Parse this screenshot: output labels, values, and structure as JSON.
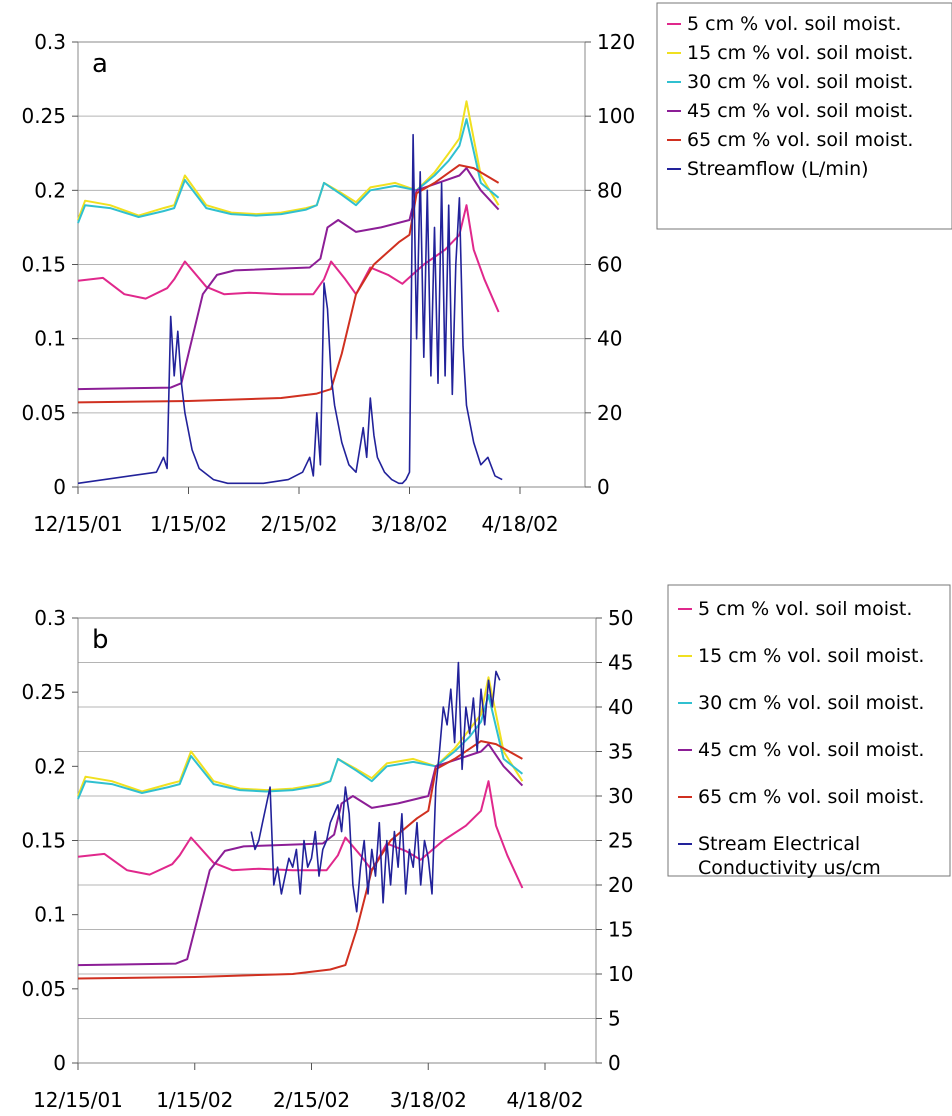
{
  "chart_data": [
    {
      "type": "line",
      "panel_label": "a",
      "x_tick_labels": [
        "12/15/01",
        "1/15/02",
        "2/15/02",
        "3/18/02",
        "4/18/02"
      ],
      "x_ticks": [
        "2001-12-15",
        "2002-01-15",
        "2002-02-15",
        "2002-03-18",
        "2002-04-18"
      ],
      "y_left": {
        "ticks": [
          "0",
          "0.05",
          "0.1",
          "0.15",
          "0.2",
          "0.25",
          "0.3"
        ],
        "lim": [
          0,
          0.3
        ]
      },
      "y_right": {
        "ticks": [
          "0",
          "20",
          "40",
          "60",
          "80",
          "100",
          "120"
        ],
        "lim": [
          0,
          120
        ]
      },
      "grid": "horizontal",
      "legend_position": "right",
      "legend": [
        "5 cm  % vol. soil moist.",
        "15 cm % vol. soil moist.",
        "30 cm % vol. soil moist.",
        "45 cm % vol. soil moist.",
        "65 cm % vol. soil moist.",
        "Streamflow (L/min)"
      ],
      "series": [
        {
          "name": "5 cm  % vol. soil moist.",
          "color": "#e0288c",
          "axis": "left",
          "x": [
            "2001-12-15",
            "2001-12-22",
            "2001-12-28",
            "2002-01-03",
            "2002-01-09",
            "2002-01-11",
            "2002-01-14",
            "2002-01-20",
            "2002-01-25",
            "2002-02-01",
            "2002-02-10",
            "2002-02-19",
            "2002-02-22",
            "2002-02-24",
            "2002-02-28",
            "2002-03-03",
            "2002-03-07",
            "2002-03-12",
            "2002-03-16",
            "2002-03-22",
            "2002-03-28",
            "2002-04-01",
            "2002-04-03",
            "2002-04-05",
            "2002-04-08",
            "2002-04-12"
          ],
          "y": [
            0.139,
            0.141,
            0.13,
            0.127,
            0.134,
            0.14,
            0.152,
            0.135,
            0.13,
            0.131,
            0.13,
            0.13,
            0.14,
            0.152,
            0.14,
            0.13,
            0.148,
            0.143,
            0.137,
            0.15,
            0.16,
            0.17,
            0.19,
            0.16,
            0.14,
            0.118
          ]
        },
        {
          "name": "15 cm % vol. soil moist.",
          "color": "#f0e020",
          "axis": "left",
          "x": [
            "2001-12-15",
            "2001-12-17",
            "2001-12-24",
            "2002-01-01",
            "2002-01-08",
            "2002-01-11",
            "2002-01-14",
            "2002-01-20",
            "2002-01-27",
            "2002-02-03",
            "2002-02-10",
            "2002-02-17",
            "2002-02-20",
            "2002-02-22",
            "2002-02-27",
            "2002-03-03",
            "2002-03-07",
            "2002-03-14",
            "2002-03-20",
            "2002-03-25",
            "2002-03-29",
            "2002-04-01",
            "2002-04-03",
            "2002-04-07",
            "2002-04-12"
          ],
          "y": [
            0.18,
            0.193,
            0.19,
            0.183,
            0.188,
            0.19,
            0.21,
            0.19,
            0.185,
            0.184,
            0.185,
            0.188,
            0.19,
            0.205,
            0.198,
            0.192,
            0.202,
            0.205,
            0.2,
            0.212,
            0.225,
            0.235,
            0.26,
            0.21,
            0.19
          ]
        },
        {
          "name": "30 cm % vol. soil moist.",
          "color": "#30c0d0",
          "axis": "left",
          "x": [
            "2001-12-15",
            "2001-12-17",
            "2001-12-24",
            "2002-01-01",
            "2002-01-08",
            "2002-01-11",
            "2002-01-14",
            "2002-01-20",
            "2002-01-27",
            "2002-02-03",
            "2002-02-10",
            "2002-02-17",
            "2002-02-20",
            "2002-02-22",
            "2002-02-27",
            "2002-03-03",
            "2002-03-07",
            "2002-03-14",
            "2002-03-20",
            "2002-03-25",
            "2002-03-29",
            "2002-04-01",
            "2002-04-03",
            "2002-04-07",
            "2002-04-12"
          ],
          "y": [
            0.178,
            0.19,
            0.188,
            0.182,
            0.186,
            0.188,
            0.207,
            0.188,
            0.184,
            0.183,
            0.184,
            0.187,
            0.19,
            0.205,
            0.197,
            0.19,
            0.2,
            0.203,
            0.2,
            0.21,
            0.22,
            0.23,
            0.248,
            0.205,
            0.195
          ]
        },
        {
          "name": "45 cm % vol. soil moist.",
          "color": "#8c1e96",
          "axis": "left",
          "x": [
            "2001-12-15",
            "2002-01-10",
            "2002-01-13",
            "2002-01-16",
            "2002-01-19",
            "2002-01-23",
            "2002-01-28",
            "2002-02-18",
            "2002-02-21",
            "2002-02-23",
            "2002-02-26",
            "2002-03-03",
            "2002-03-10",
            "2002-03-18",
            "2002-03-20",
            "2002-03-26",
            "2002-04-01",
            "2002-04-03",
            "2002-04-07",
            "2002-04-12"
          ],
          "y": [
            0.066,
            0.067,
            0.07,
            0.1,
            0.13,
            0.143,
            0.146,
            0.148,
            0.154,
            0.175,
            0.18,
            0.172,
            0.175,
            0.18,
            0.2,
            0.205,
            0.21,
            0.215,
            0.2,
            0.187
          ]
        },
        {
          "name": "65 cm % vol. soil moist.",
          "color": "#d03020",
          "axis": "left",
          "x": [
            "2001-12-15",
            "2002-01-15",
            "2002-02-10",
            "2002-02-20",
            "2002-02-24",
            "2002-02-27",
            "2002-03-03",
            "2002-03-08",
            "2002-03-15",
            "2002-03-18",
            "2002-03-20",
            "2002-03-25",
            "2002-04-01",
            "2002-04-05",
            "2002-04-12"
          ],
          "y": [
            0.057,
            0.058,
            0.06,
            0.063,
            0.066,
            0.09,
            0.13,
            0.15,
            0.165,
            0.17,
            0.198,
            0.205,
            0.217,
            0.215,
            0.205
          ]
        },
        {
          "name": "Streamflow (L/min)",
          "color": "#22229a",
          "axis": "right",
          "x": [
            "2001-12-15",
            "2002-01-06",
            "2002-01-07",
            "2002-01-08",
            "2002-01-09",
            "2002-01-10",
            "2002-01-11",
            "2002-01-12",
            "2002-01-13",
            "2002-01-14",
            "2002-01-16",
            "2002-01-18",
            "2002-01-22",
            "2002-01-26",
            "2002-02-05",
            "2002-02-12",
            "2002-02-16",
            "2002-02-18",
            "2002-02-19",
            "2002-02-20",
            "2002-02-21",
            "2002-02-22",
            "2002-02-23",
            "2002-02-24",
            "2002-02-25",
            "2002-02-27",
            "2002-03-01",
            "2002-03-03",
            "2002-03-05",
            "2002-03-06",
            "2002-03-07",
            "2002-03-08",
            "2002-03-09",
            "2002-03-11",
            "2002-03-13",
            "2002-03-15",
            "2002-03-16",
            "2002-03-17",
            "2002-03-18",
            "2002-03-19",
            "2002-03-20",
            "2002-03-21",
            "2002-03-22",
            "2002-03-23",
            "2002-03-24",
            "2002-03-25",
            "2002-03-26",
            "2002-03-27",
            "2002-03-28",
            "2002-03-29",
            "2002-03-30",
            "2002-03-31",
            "2002-04-01",
            "2002-04-02",
            "2002-04-03",
            "2002-04-05",
            "2002-04-07",
            "2002-04-09",
            "2002-04-11",
            "2002-04-13"
          ],
          "y": [
            1,
            4,
            6,
            8,
            5,
            46,
            30,
            42,
            28,
            20,
            10,
            5,
            2,
            1,
            1,
            2,
            4,
            8,
            3,
            20,
            6,
            55,
            48,
            30,
            22,
            12,
            6,
            4,
            16,
            8,
            24,
            14,
            8,
            4,
            2,
            1,
            1,
            2,
            4,
            95,
            40,
            85,
            35,
            80,
            30,
            70,
            28,
            82,
            30,
            76,
            25,
            60,
            78,
            38,
            22,
            12,
            6,
            8,
            3,
            2
          ]
        }
      ]
    },
    {
      "type": "line",
      "panel_label": "b",
      "x_tick_labels": [
        "12/15/01",
        "1/15/02",
        "2/15/02",
        "3/18/02",
        "4/18/02"
      ],
      "x_ticks": [
        "2001-12-15",
        "2002-01-15",
        "2002-02-15",
        "2002-03-18",
        "2002-04-18"
      ],
      "y_left": {
        "ticks": [
          "0",
          "0.05",
          "0.1",
          "0.15",
          "0.2",
          "0.25",
          "0.3"
        ],
        "lim": [
          0,
          0.3
        ]
      },
      "y_right": {
        "ticks": [
          "0",
          "5",
          "10",
          "15",
          "20",
          "25",
          "30",
          "35",
          "40",
          "45",
          "50"
        ],
        "lim": [
          0,
          50
        ]
      },
      "grid": "horizontal",
      "legend_position": "right",
      "legend": [
        "5 cm  % vol. soil moist.",
        "15 cm % vol. soil moist.",
        "30 cm % vol. soil moist.",
        "45 cm % vol. soil moist.",
        "65 cm % vol. soil moist.",
        "Stream Electrical Conductivity us/cm"
      ],
      "series": [
        {
          "name": "5 cm  % vol. soil moist.",
          "color": "#e0288c",
          "axis": "left",
          "x": [
            "2001-12-15",
            "2001-12-22",
            "2001-12-28",
            "2002-01-03",
            "2002-01-09",
            "2002-01-11",
            "2002-01-14",
            "2002-01-20",
            "2002-01-25",
            "2002-02-01",
            "2002-02-10",
            "2002-02-19",
            "2002-02-22",
            "2002-02-24",
            "2002-02-28",
            "2002-03-03",
            "2002-03-07",
            "2002-03-12",
            "2002-03-16",
            "2002-03-22",
            "2002-03-28",
            "2002-04-01",
            "2002-04-03",
            "2002-04-05",
            "2002-04-08",
            "2002-04-12"
          ],
          "y": [
            0.139,
            0.141,
            0.13,
            0.127,
            0.134,
            0.14,
            0.152,
            0.135,
            0.13,
            0.131,
            0.13,
            0.13,
            0.14,
            0.152,
            0.14,
            0.13,
            0.148,
            0.143,
            0.137,
            0.15,
            0.16,
            0.17,
            0.19,
            0.16,
            0.14,
            0.118
          ]
        },
        {
          "name": "15 cm % vol. soil moist.",
          "color": "#f0e020",
          "axis": "left",
          "x": [
            "2001-12-15",
            "2001-12-17",
            "2001-12-24",
            "2002-01-01",
            "2002-01-08",
            "2002-01-11",
            "2002-01-14",
            "2002-01-20",
            "2002-01-27",
            "2002-02-03",
            "2002-02-10",
            "2002-02-17",
            "2002-02-20",
            "2002-02-22",
            "2002-02-27",
            "2002-03-03",
            "2002-03-07",
            "2002-03-14",
            "2002-03-20",
            "2002-03-25",
            "2002-03-29",
            "2002-04-01",
            "2002-04-03",
            "2002-04-07",
            "2002-04-12"
          ],
          "y": [
            0.18,
            0.193,
            0.19,
            0.183,
            0.188,
            0.19,
            0.21,
            0.19,
            0.185,
            0.184,
            0.185,
            0.188,
            0.19,
            0.205,
            0.198,
            0.192,
            0.202,
            0.205,
            0.2,
            0.212,
            0.225,
            0.235,
            0.26,
            0.21,
            0.19
          ]
        },
        {
          "name": "30 cm % vol. soil moist.",
          "color": "#30c0d0",
          "axis": "left",
          "x": [
            "2001-12-15",
            "2001-12-17",
            "2001-12-24",
            "2002-01-01",
            "2002-01-08",
            "2002-01-11",
            "2002-01-14",
            "2002-01-20",
            "2002-01-27",
            "2002-02-03",
            "2002-02-10",
            "2002-02-17",
            "2002-02-20",
            "2002-02-22",
            "2002-02-27",
            "2002-03-03",
            "2002-03-07",
            "2002-03-14",
            "2002-03-20",
            "2002-03-25",
            "2002-03-29",
            "2002-04-01",
            "2002-04-03",
            "2002-04-07",
            "2002-04-12"
          ],
          "y": [
            0.178,
            0.19,
            0.188,
            0.182,
            0.186,
            0.188,
            0.207,
            0.188,
            0.184,
            0.183,
            0.184,
            0.187,
            0.19,
            0.205,
            0.197,
            0.19,
            0.2,
            0.203,
            0.2,
            0.21,
            0.22,
            0.23,
            0.248,
            0.205,
            0.195
          ]
        },
        {
          "name": "45 cm % vol. soil moist.",
          "color": "#8c1e96",
          "axis": "left",
          "x": [
            "2001-12-15",
            "2002-01-10",
            "2002-01-13",
            "2002-01-16",
            "2002-01-19",
            "2002-01-23",
            "2002-01-28",
            "2002-02-18",
            "2002-02-21",
            "2002-02-23",
            "2002-02-26",
            "2002-03-03",
            "2002-03-10",
            "2002-03-18",
            "2002-03-20",
            "2002-03-26",
            "2002-04-01",
            "2002-04-03",
            "2002-04-07",
            "2002-04-12"
          ],
          "y": [
            0.066,
            0.067,
            0.07,
            0.1,
            0.13,
            0.143,
            0.146,
            0.148,
            0.154,
            0.175,
            0.18,
            0.172,
            0.175,
            0.18,
            0.2,
            0.205,
            0.21,
            0.215,
            0.2,
            0.187
          ]
        },
        {
          "name": "65 cm % vol. soil moist.",
          "color": "#d03020",
          "axis": "left",
          "x": [
            "2001-12-15",
            "2002-01-15",
            "2002-02-10",
            "2002-02-20",
            "2002-02-24",
            "2002-02-27",
            "2002-03-03",
            "2002-03-08",
            "2002-03-15",
            "2002-03-18",
            "2002-03-20",
            "2002-03-25",
            "2002-04-01",
            "2002-04-05",
            "2002-04-12"
          ],
          "y": [
            0.057,
            0.058,
            0.06,
            0.063,
            0.066,
            0.09,
            0.13,
            0.15,
            0.165,
            0.17,
            0.198,
            0.205,
            0.217,
            0.215,
            0.205
          ]
        },
        {
          "name": "Stream Electrical Conductivity us/cm",
          "color": "#22229a",
          "axis": "right",
          "x": [
            "2002-01-30",
            "2002-01-31",
            "2002-02-01",
            "2002-02-02",
            "2002-02-03",
            "2002-02-04",
            "2002-02-05",
            "2002-02-06",
            "2002-02-07",
            "2002-02-08",
            "2002-02-09",
            "2002-02-10",
            "2002-02-11",
            "2002-02-12",
            "2002-02-13",
            "2002-02-14",
            "2002-02-15",
            "2002-02-16",
            "2002-02-17",
            "2002-02-18",
            "2002-02-19",
            "2002-02-20",
            "2002-02-21",
            "2002-02-22",
            "2002-02-23",
            "2002-02-24",
            "2002-02-25",
            "2002-02-26",
            "2002-02-27",
            "2002-02-28",
            "2002-03-01",
            "2002-03-02",
            "2002-03-03",
            "2002-03-04",
            "2002-03-05",
            "2002-03-06",
            "2002-03-07",
            "2002-03-08",
            "2002-03-09",
            "2002-03-10",
            "2002-03-11",
            "2002-03-12",
            "2002-03-13",
            "2002-03-14",
            "2002-03-15",
            "2002-03-16",
            "2002-03-17",
            "2002-03-18",
            "2002-03-19",
            "2002-03-20",
            "2002-03-21",
            "2002-03-22",
            "2002-03-23",
            "2002-03-24",
            "2002-03-25",
            "2002-03-26",
            "2002-03-27",
            "2002-03-28",
            "2002-03-29",
            "2002-03-30",
            "2002-03-31",
            "2002-04-01",
            "2002-04-02",
            "2002-04-03",
            "2002-04-04",
            "2002-04-05",
            "2002-04-06"
          ],
          "y": [
            26,
            24,
            25,
            27,
            29,
            31,
            20,
            22,
            19,
            21,
            23,
            22,
            24,
            19,
            25,
            22,
            23,
            26,
            21,
            24,
            25,
            27,
            28,
            29,
            26,
            31,
            28,
            20,
            17,
            22,
            25,
            19,
            24,
            21,
            27,
            18,
            25,
            20,
            26,
            22,
            28,
            19,
            24,
            22,
            27,
            20,
            25,
            23,
            19,
            31,
            35,
            40,
            38,
            42,
            36,
            45,
            33,
            40,
            37,
            41,
            35,
            42,
            38,
            43,
            40,
            44,
            43
          ]
        }
      ]
    }
  ]
}
